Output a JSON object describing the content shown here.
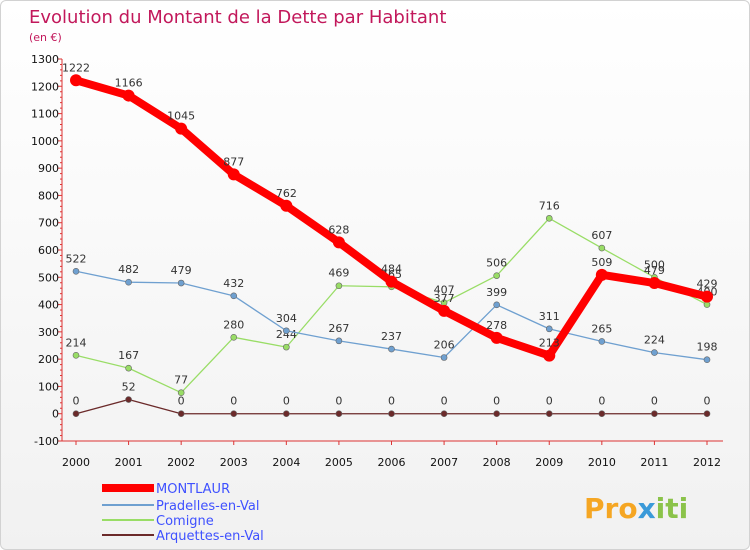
{
  "chart_data": {
    "type": "line",
    "title": "Evolution du Montant de la Dette par Habitant",
    "subtitle": "(en €)",
    "xlabel": "",
    "ylabel": "",
    "categories": [
      "2000",
      "2001",
      "2002",
      "2003",
      "2004",
      "2005",
      "2006",
      "2007",
      "2008",
      "2009",
      "2010",
      "2011",
      "2012"
    ],
    "ylim": [
      -100,
      1300
    ],
    "yticks": [
      -100,
      0,
      100,
      200,
      300,
      400,
      500,
      600,
      700,
      800,
      900,
      1000,
      1100,
      1200,
      1300
    ],
    "grid": false,
    "legend_position": "bottom-left",
    "series": [
      {
        "name": "MONTLAUR",
        "color": "#ff0000",
        "values": [
          1222,
          1166,
          1045,
          877,
          762,
          628,
          484,
          377,
          278,
          213,
          509,
          479,
          429
        ]
      },
      {
        "name": "Pradelles-en-Val",
        "color": "#6fa0d0",
        "values": [
          522,
          482,
          479,
          432,
          304,
          267,
          237,
          206,
          399,
          311,
          265,
          224,
          198
        ]
      },
      {
        "name": "Comigne",
        "color": "#99dd66",
        "values": [
          214,
          167,
          77,
          280,
          244,
          469,
          465,
          407,
          506,
          716,
          607,
          500,
          400
        ]
      },
      {
        "name": "Arquettes-en-Val",
        "color": "#6b2a2a",
        "values": [
          0,
          52,
          0,
          0,
          0,
          0,
          0,
          0,
          0,
          0,
          0,
          0,
          0
        ]
      }
    ]
  },
  "logo": {
    "text": "Proxiti"
  }
}
